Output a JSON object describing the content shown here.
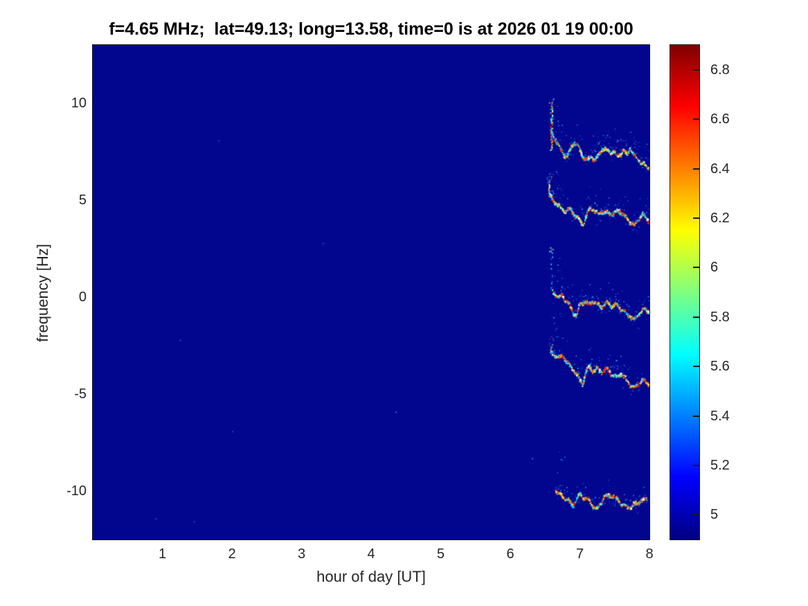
{
  "title": "f=4.65 MHz;  lat=49.13; long=13.58, time=0 is at 2026 01 19 00:00",
  "chart_data": {
    "type": "heatmap",
    "title": "f=4.65 MHz;  lat=49.13; long=13.58, time=0 is at 2026 01 19 00:00",
    "xlabel": "hour of day [UT]",
    "ylabel": "frequency [Hz]",
    "xlim": [
      0,
      8
    ],
    "ylim": [
      -12.5,
      13.0
    ],
    "x_ticks": [
      1,
      2,
      3,
      4,
      5,
      6,
      7,
      8
    ],
    "y_ticks": [
      10,
      5,
      0,
      -5,
      -10
    ],
    "grid": false,
    "background_value_color": "#02068f",
    "colormap": {
      "name": "jet",
      "stops": [
        [
          "#000080",
          0
        ],
        [
          "#0000ff",
          12.5
        ],
        [
          "#00ffff",
          37.5
        ],
        [
          "#ffff00",
          62.5
        ],
        [
          "#ff0000",
          87.5
        ],
        [
          "#800000",
          100
        ]
      ]
    },
    "colorbar": {
      "position": "right",
      "range": [
        4.9,
        6.9
      ],
      "tick_values": [
        5,
        5.2,
        5.4,
        5.6,
        5.8,
        6,
        6.2,
        6.4,
        6.6,
        6.8
      ],
      "tick_labels": [
        "5",
        "5.2",
        "5.4",
        "5.6",
        "5.8",
        "6",
        "6.2",
        "6.4",
        "6.6",
        "6.8"
      ]
    },
    "trace_palette": [
      [
        0.13,
        "#ffffff"
      ],
      [
        0.16,
        "#00eaff"
      ],
      [
        0.1,
        "#35a5ff"
      ],
      [
        0.07,
        "#7dffa8"
      ],
      [
        0.14,
        "#ffee00"
      ],
      [
        0.15,
        "#ff9400"
      ],
      [
        0.13,
        "#ff3000"
      ],
      [
        0.12,
        "#b40000"
      ]
    ],
    "halo_palette": [
      "#1f3fd0",
      "#2a5be0",
      "#3f86ff",
      "#18c5ff"
    ],
    "series": [
      {
        "name": "doppler-trace-1",
        "spike": {
          "h": 6.585,
          "f_top": 9.9,
          "f_bottom": 7.6,
          "density": 0.9,
          "scatter_top": 10.25,
          "faint": false
        },
        "halo_density": 0.3,
        "halo_hz": 1.5,
        "points": [
          [
            6.59,
            8.6
          ],
          [
            6.63,
            8.2
          ],
          [
            6.68,
            7.95
          ],
          [
            6.73,
            7.55
          ],
          [
            6.78,
            7.3
          ],
          [
            6.82,
            7.25
          ],
          [
            6.87,
            7.7
          ],
          [
            6.93,
            8.0
          ],
          [
            6.97,
            7.85
          ],
          [
            7.02,
            7.4
          ],
          [
            7.06,
            7.15
          ],
          [
            7.12,
            7.1
          ],
          [
            7.17,
            7.25
          ],
          [
            7.22,
            7.05
          ],
          [
            7.27,
            7.3
          ],
          [
            7.32,
            7.7
          ],
          [
            7.37,
            7.6
          ],
          [
            7.43,
            7.45
          ],
          [
            7.48,
            7.55
          ],
          [
            7.54,
            7.2
          ],
          [
            7.58,
            7.4
          ],
          [
            7.63,
            7.55
          ],
          [
            7.68,
            7.35
          ],
          [
            7.72,
            7.65
          ],
          [
            7.79,
            7.25
          ],
          [
            7.85,
            7.1
          ],
          [
            7.9,
            6.85
          ],
          [
            7.95,
            6.8
          ],
          [
            8.0,
            6.7
          ]
        ]
      },
      {
        "name": "doppler-trace-2",
        "spike": {
          "h": 6.555,
          "f_top": 5.86,
          "f_bottom": 5.25,
          "density": 0.85,
          "scatter_top": 6.3,
          "faint": false
        },
        "halo_density": 0.28,
        "halo_hz": 1.3,
        "points": [
          [
            6.56,
            5.25
          ],
          [
            6.61,
            5.05
          ],
          [
            6.66,
            4.85
          ],
          [
            6.73,
            4.55
          ],
          [
            6.8,
            4.45
          ],
          [
            6.87,
            4.5
          ],
          [
            6.93,
            4.2
          ],
          [
            7.0,
            3.9
          ],
          [
            7.04,
            3.7
          ],
          [
            7.09,
            4.1
          ],
          [
            7.14,
            4.55
          ],
          [
            7.2,
            4.5
          ],
          [
            7.26,
            4.25
          ],
          [
            7.31,
            4.45
          ],
          [
            7.37,
            4.35
          ],
          [
            7.44,
            4.3
          ],
          [
            7.5,
            4.32
          ],
          [
            7.57,
            4.45
          ],
          [
            7.65,
            4.15
          ],
          [
            7.72,
            3.9
          ],
          [
            7.78,
            3.65
          ],
          [
            7.84,
            4.0
          ],
          [
            7.9,
            4.25
          ],
          [
            7.95,
            4.1
          ],
          [
            8.0,
            3.9
          ]
        ]
      },
      {
        "name": "doppler-trace-3",
        "spike": {
          "h": 6.59,
          "f_top": 2.35,
          "f_bottom": 0.4,
          "density": 0.3,
          "scatter_top": 2.6,
          "faint": true
        },
        "halo_density": 0.24,
        "halo_hz": 1.5,
        "points": [
          [
            6.6,
            0.3
          ],
          [
            6.65,
            0.15
          ],
          [
            6.7,
            -0.05
          ],
          [
            6.75,
            0.05
          ],
          [
            6.8,
            -0.15
          ],
          [
            6.85,
            -0.4
          ],
          [
            6.9,
            -0.75
          ],
          [
            6.95,
            -1.0
          ],
          [
            7.0,
            -0.4
          ],
          [
            7.07,
            -0.2
          ],
          [
            7.12,
            -0.4
          ],
          [
            7.19,
            -0.2
          ],
          [
            7.25,
            -0.4
          ],
          [
            7.32,
            -0.5
          ],
          [
            7.39,
            -0.3
          ],
          [
            7.45,
            -0.45
          ],
          [
            7.54,
            -0.4
          ],
          [
            7.6,
            -0.65
          ],
          [
            7.67,
            -0.85
          ],
          [
            7.74,
            -1.05
          ],
          [
            7.79,
            -1.2
          ],
          [
            7.85,
            -0.85
          ],
          [
            7.92,
            -0.65
          ],
          [
            8.0,
            -0.75
          ]
        ]
      },
      {
        "name": "doppler-trace-4",
        "spike": {
          "h": 6.58,
          "f_top": -2.55,
          "f_bottom": -2.95,
          "density": 0.5,
          "scatter_top": -2.0,
          "faint": true
        },
        "halo_density": 0.22,
        "halo_hz": 1.2,
        "points": [
          [
            6.58,
            -2.8
          ],
          [
            6.63,
            -3.0
          ],
          [
            6.7,
            -3.15
          ],
          [
            6.76,
            -3.05
          ],
          [
            6.81,
            -3.3
          ],
          [
            6.86,
            -3.55
          ],
          [
            6.93,
            -3.85
          ],
          [
            7.0,
            -4.3
          ],
          [
            7.04,
            -4.5
          ],
          [
            7.09,
            -3.85
          ],
          [
            7.14,
            -3.6
          ],
          [
            7.19,
            -3.8
          ],
          [
            7.25,
            -3.7
          ],
          [
            7.32,
            -3.85
          ],
          [
            7.39,
            -3.7
          ],
          [
            7.45,
            -3.95
          ],
          [
            7.52,
            -4.15
          ],
          [
            7.59,
            -3.95
          ],
          [
            7.65,
            -4.2
          ],
          [
            7.72,
            -4.5
          ],
          [
            7.77,
            -4.7
          ],
          [
            7.84,
            -4.45
          ],
          [
            7.9,
            -4.3
          ],
          [
            8.0,
            -4.5
          ]
        ]
      },
      {
        "name": "doppler-trace-5",
        "spike": null,
        "halo_density": 0.16,
        "halo_hz": 1.0,
        "points": [
          [
            6.65,
            -9.95
          ],
          [
            6.7,
            -10.15
          ],
          [
            6.76,
            -10.3
          ],
          [
            6.83,
            -10.5
          ],
          [
            6.9,
            -10.75
          ],
          [
            6.96,
            -10.4
          ],
          [
            7.0,
            -10.2
          ],
          [
            7.05,
            -10.3
          ],
          [
            7.12,
            -10.45
          ],
          [
            7.19,
            -10.75
          ],
          [
            7.24,
            -10.95
          ],
          [
            7.3,
            -10.65
          ],
          [
            7.35,
            -10.3
          ],
          [
            7.42,
            -10.2
          ],
          [
            7.49,
            -10.3
          ],
          [
            7.55,
            -10.5
          ],
          [
            7.62,
            -10.75
          ],
          [
            7.69,
            -10.85
          ],
          [
            7.75,
            -10.8
          ],
          [
            7.82,
            -10.65
          ],
          [
            7.88,
            -10.5
          ],
          [
            7.97,
            -10.4
          ]
        ]
      }
    ],
    "stray_dots": [
      [
        6.31,
        -8.3
      ],
      [
        0.9,
        -11.4
      ],
      [
        1.45,
        -11.55
      ],
      [
        2.0,
        -6.9
      ],
      [
        4.35,
        -5.9
      ],
      [
        1.25,
        -2.2
      ],
      [
        3.3,
        2.8
      ],
      [
        1.8,
        8.1
      ]
    ]
  },
  "style": {
    "text_color": "#262626",
    "title_color": "#000000"
  }
}
